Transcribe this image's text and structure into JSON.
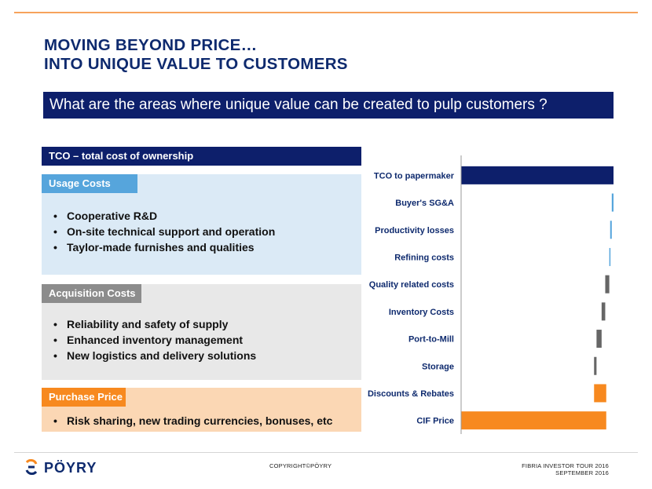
{
  "title": {
    "line1": "MOVING BEYOND PRICE…",
    "line2": "INTO UNIQUE VALUE TO CUSTOMERS"
  },
  "question": "What are the areas where unique value can be created to pulp customers ?",
  "tco_header": "TCO – total cost of ownership",
  "sections": {
    "usage": {
      "label": "Usage Costs",
      "bullets": [
        "Cooperative R&D",
        "On-site technical support and operation",
        "Taylor-made furnishes and qualities"
      ]
    },
    "acquisition": {
      "label": "Acquisition Costs",
      "bullets": [
        "Reliability and safety of supply",
        "Enhanced inventory management",
        "New logistics and delivery solutions"
      ]
    },
    "purchase": {
      "label": "Purchase Price",
      "bullets": [
        "Risk sharing, new trading currencies, bonuses, etc"
      ]
    }
  },
  "colors": {
    "navy": "#0d1f6b",
    "blue": "#56a5dc",
    "gray": "#666666",
    "orange": "#f7891f"
  },
  "chart_data": {
    "type": "bar",
    "subtype": "waterfall",
    "categories": [
      "TCO to papermaker",
      "Buyer's SG&A",
      "Productivity losses",
      "Refining costs",
      "Quality related costs",
      "Inventory Costs",
      "Port-to-Mill",
      "Storage",
      "Discounts & Rebates",
      "CIF Price"
    ],
    "bars": [
      {
        "start": 0,
        "end": 105.0,
        "color": "navy"
      },
      {
        "start": 103.8,
        "end": 105.0,
        "color": "blue"
      },
      {
        "start": 102.7,
        "end": 103.8,
        "color": "blue"
      },
      {
        "start": 102.1,
        "end": 102.7,
        "color": "blue"
      },
      {
        "start": 99.3,
        "end": 102.1,
        "color": "gray"
      },
      {
        "start": 96.8,
        "end": 99.3,
        "color": "gray"
      },
      {
        "start": 93.3,
        "end": 96.8,
        "color": "gray"
      },
      {
        "start": 91.6,
        "end": 93.3,
        "color": "gray"
      },
      {
        "start": 91.6,
        "end": 100.0,
        "color": "orange"
      },
      {
        "start": 0,
        "end": 100.0,
        "color": "orange"
      }
    ],
    "xlim": [
      0,
      105.0
    ],
    "grid": false,
    "legend": "none"
  },
  "footer": {
    "logo": "PÖYRY",
    "copyright": "COPYRIGHT©PÖYRY",
    "event_line1": "FIBRIA INVESTOR TOUR 2016",
    "event_line2": "SEPTEMBER 2016"
  }
}
